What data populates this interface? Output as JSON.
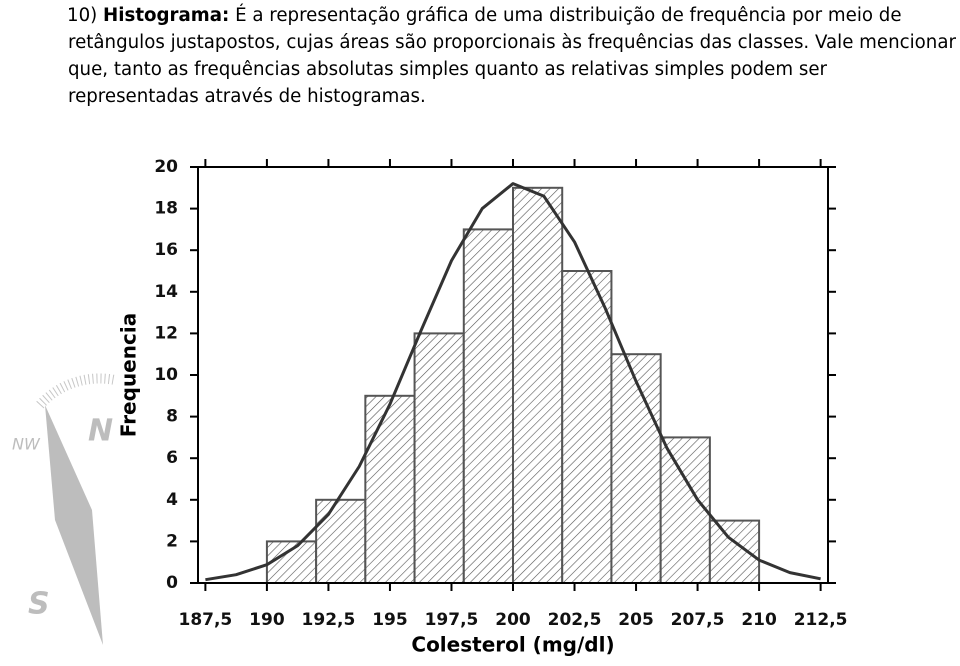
{
  "document": {
    "number": "10)",
    "term": "Histograma:",
    "text": "É a representação gráfica de uma distribuição de frequência por meio de retângulos justapostos, cujas áreas são proporcionais às frequências das classes. Vale mencionar que, tanto as frequências absolutas simples quanto as relativas simples podem ser representadas através de histogramas."
  },
  "compass": [
    "N",
    "NW",
    "S"
  ],
  "chart_data": {
    "type": "histogram",
    "xlabel": "Colesterol (mg/dl)",
    "ylabel": "Frequencia",
    "bins": [
      190,
      192,
      194,
      196,
      198,
      200,
      202,
      204,
      206,
      208,
      210
    ],
    "counts": [
      2,
      4,
      9,
      12,
      17,
      19,
      15,
      11,
      7,
      3
    ],
    "curve": {
      "x": [
        187.5,
        188.75,
        190,
        191.25,
        192.5,
        193.75,
        195,
        196.25,
        197.5,
        198.75,
        200,
        201.25,
        202.5,
        203.75,
        205,
        206.25,
        207.5,
        208.75,
        210,
        211.25,
        212.5
      ],
      "y": [
        0.16,
        0.4,
        0.88,
        1.8,
        3.3,
        5.6,
        8.6,
        12.1,
        15.5,
        18.0,
        19.2,
        18.6,
        16.4,
        13.2,
        9.7,
        6.5,
        4.0,
        2.2,
        1.1,
        0.5,
        0.2
      ]
    },
    "xlim": [
      187.2,
      212.8
    ],
    "ylim": [
      0,
      20
    ],
    "xticks": [
      {
        "value": 187.5,
        "label": "187,5"
      },
      190,
      {
        "value": 192.5,
        "label": "192,5"
      },
      195,
      {
        "value": 197.5,
        "label": "197,5"
      },
      200,
      {
        "value": 202.5,
        "label": "202,5"
      },
      205,
      {
        "value": 207.5,
        "label": "207,5"
      },
      210,
      {
        "value": 212.5,
        "label": "212,5"
      }
    ],
    "yticks": [
      0,
      2,
      4,
      6,
      8,
      10,
      12,
      14,
      16,
      18,
      20
    ]
  }
}
